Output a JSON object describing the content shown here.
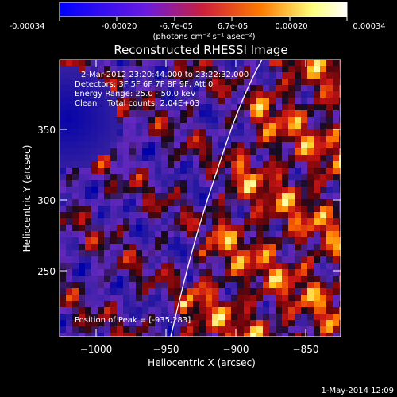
{
  "colorbar": {
    "ticks": [
      "-0.00034",
      "-0.00020",
      "-6.7e-05",
      "6.7e-05",
      "0.00020",
      "0.00034"
    ],
    "unit_label": "(photons cm⁻² s⁻¹ asec⁻²)",
    "colormap": [
      "#0000ff",
      "#6a1be0",
      "#cc1f3a",
      "#ff7a00",
      "#ffff7a",
      "#ffffff"
    ]
  },
  "title": "Reconstructed RHESSI Image",
  "annotations": {
    "time_range": "2-Mar-2012 23:20:44.000 to 23:22:32.000",
    "detectors": "Detectors: 3F 5F 6F 7F 8F 9F, Att 0",
    "energy": "Energy Range: 25.0 - 50.0 keV",
    "clean": "Clean    Total counts: 2.04E+03",
    "peak": "Position of Peak = [-935,283]"
  },
  "axes": {
    "xlabel": "Heliocentric X (arcsec)",
    "ylabel": "Heliocentric Y (arcsec)",
    "xticks": [
      "−1000",
      "−950",
      "−900",
      "−850"
    ],
    "yticks": [
      "250",
      "300",
      "350"
    ]
  },
  "footer": "1-May-2014 12:09"
}
